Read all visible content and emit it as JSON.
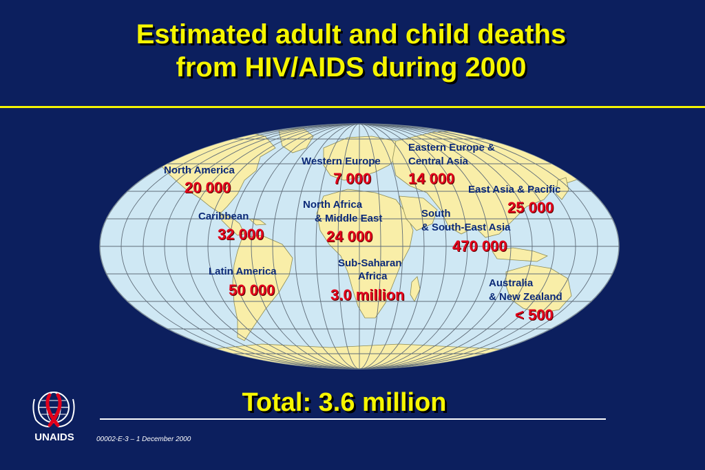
{
  "title_line1": "Estimated adult and child deaths",
  "title_line2": "from HIV/AIDS during 2000",
  "regions": [
    {
      "name": "North America",
      "value": "20 000"
    },
    {
      "name": "Caribbean",
      "value": "32 000"
    },
    {
      "name": "Latin America",
      "value": "50 000"
    },
    {
      "name": "Western Europe",
      "value": "7 000"
    },
    {
      "name_line1": "North Africa",
      "name_line2": "& Middle East",
      "value": "24 000"
    },
    {
      "name_line1": "Sub-Saharan",
      "name_line2": "Africa",
      "value": "3.0 million"
    },
    {
      "name_line1": "Eastern Europe &",
      "name_line2": "Central Asia",
      "value": "14 000"
    },
    {
      "name": "East Asia & Pacific",
      "value": "25 000"
    },
    {
      "name_line1": "South",
      "name_line2": "& South-East Asia",
      "value": "470 000"
    },
    {
      "name_line1": "Australia",
      "name_line2": "& New Zealand",
      "value": "< 500"
    }
  ],
  "total": "Total: 3.6 million",
  "footnote": "00002-E-3 – 1 December 2000",
  "logo_text": "UNAIDS",
  "colors": {
    "background": "#0c1f5e",
    "title": "#f5f500",
    "ocean": "#cfe8f4",
    "land": "#f9eea8",
    "label": "#0c2a78",
    "value": "#e3001b"
  }
}
